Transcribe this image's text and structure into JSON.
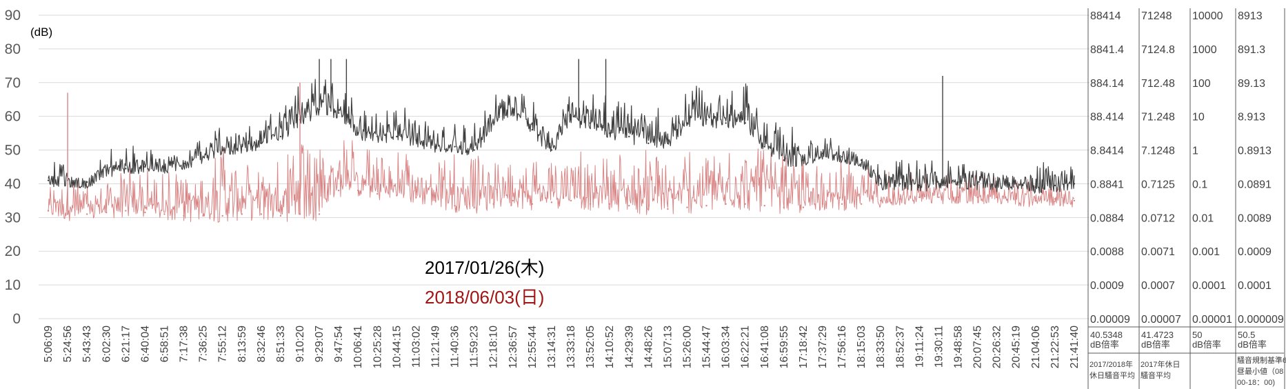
{
  "chart_data": {
    "type": "line",
    "unit_label": "(dB)",
    "ylim": [
      0,
      90
    ],
    "y_ticks": [
      "0",
      "10",
      "20",
      "30",
      "40",
      "50",
      "60",
      "70",
      "80",
      "90"
    ],
    "x_ticks": [
      "5:06:09",
      "5:24:56",
      "5:43:43",
      "6:02:30",
      "6:21:17",
      "6:40:04",
      "6:58:51",
      "7:17:38",
      "7:36:25",
      "7:55:12",
      "8:13:59",
      "8:32:46",
      "8:51:33",
      "9:10:20",
      "9:29:07",
      "9:47:54",
      "10:06:41",
      "10:25:28",
      "10:44:15",
      "11:03:02",
      "11:21:49",
      "11:40:36",
      "11:59:23",
      "12:18:10",
      "12:36:57",
      "12:55:44",
      "13:14:31",
      "13:33:18",
      "13:52:05",
      "14:10:52",
      "14:29:39",
      "14:48:26",
      "15:07:13",
      "15:26:00",
      "15:44:47",
      "16:03:34",
      "16:22:21",
      "16:41:08",
      "16:59:55",
      "17:18:42",
      "17:37:29",
      "17:56:16",
      "18:15:03",
      "18:33:50",
      "18:52:37",
      "19:11:24",
      "19:30:11",
      "19:48:58",
      "20:07:45",
      "20:26:32",
      "20:45:19",
      "21:04:06",
      "21:22:53",
      "21:41:40"
    ],
    "grid": true,
    "series": [
      {
        "name": "2017/01/26(木)",
        "color": "#404040",
        "values": [
          41,
          41,
          40.5,
          44,
          44.5,
          45,
          45,
          46,
          48,
          50,
          51,
          52,
          54,
          59,
          62,
          61,
          55,
          54,
          54,
          53,
          51,
          51,
          50,
          58,
          62,
          56,
          50,
          59,
          58,
          55,
          54,
          52,
          52,
          58,
          59,
          58,
          58,
          51,
          47,
          47,
          49,
          48,
          47,
          40,
          40,
          39.5,
          40,
          40.5,
          40,
          39.5,
          40,
          39,
          39.5,
          40
        ],
        "upper": [
          43,
          42,
          41.5,
          46,
          48,
          47,
          48,
          49,
          52,
          54,
          55,
          57,
          59,
          66,
          68,
          66,
          60,
          59,
          59,
          58,
          55,
          55,
          54,
          64,
          67,
          61,
          54,
          65,
          65,
          62,
          60,
          59,
          58,
          64,
          66,
          65,
          66,
          56,
          53,
          53,
          51,
          50,
          49,
          43,
          43,
          43,
          44,
          44,
          44,
          43,
          43,
          42.5,
          43,
          43
        ]
      },
      {
        "name": "2018/06/03(日)",
        "color": "#d98585",
        "values": [
          32,
          31,
          31,
          31.5,
          32,
          31.5,
          31,
          30.5,
          30.5,
          30.5,
          31,
          31,
          30.5,
          31,
          31,
          38,
          38,
          37,
          36.5,
          36,
          35,
          33.5,
          33,
          34,
          35,
          34,
          34.5,
          35,
          34,
          34,
          33.5,
          32.5,
          32.5,
          33,
          33.5,
          34,
          34,
          33.5,
          33,
          33,
          34,
          34,
          34,
          35,
          35.5,
          36,
          36,
          36,
          36,
          36,
          35.5,
          35,
          35.5,
          35
        ],
        "upper": [
          40,
          39,
          38,
          40,
          42,
          41,
          40,
          40,
          43,
          48,
          44,
          45,
          46,
          48,
          47,
          50,
          49,
          45,
          46,
          44,
          44,
          45,
          44,
          46,
          47,
          45,
          46,
          47,
          46,
          44,
          46,
          46,
          45,
          46,
          45,
          46,
          49,
          48,
          45,
          44,
          43,
          44,
          43,
          40,
          40,
          40,
          40,
          40,
          40,
          40,
          39,
          38,
          40,
          38
        ]
      }
    ],
    "spikes": [
      {
        "series": 0,
        "x": 14.0,
        "y": 77
      },
      {
        "series": 0,
        "x": 14.6,
        "y": 77
      },
      {
        "series": 0,
        "x": 15.4,
        "y": 77
      },
      {
        "series": 0,
        "x": 27.4,
        "y": 77
      },
      {
        "series": 0,
        "x": 28.8,
        "y": 77
      },
      {
        "series": 0,
        "x": 46.2,
        "y": 72
      },
      {
        "series": 1,
        "x": 1.0,
        "y": 67
      },
      {
        "series": 1,
        "x": 13.0,
        "y": 70
      }
    ],
    "right_columns": [
      {
        "ticks": [
          "0.00009",
          "0.0009",
          "0.0088",
          "0.0884",
          "0.8841",
          "8.8414",
          "88.414",
          "884.14",
          "8841.4",
          "88414"
        ],
        "value": "40.5348",
        "value_label": "dB倍率",
        "caption": [
          "2017/2018年",
          "休日騒音平均"
        ]
      },
      {
        "ticks": [
          "0.00007",
          "0.0007",
          "0.0071",
          "0.0712",
          "0.7125",
          "7.1248",
          "71.248",
          "712.48",
          "7124.8",
          "71248"
        ],
        "value": "41.4723",
        "value_label": "dB倍率",
        "caption": [
          "2017年休日",
          "騒音平均"
        ]
      },
      {
        "ticks": [
          "0.00001",
          "0.0001",
          "0.001",
          "0.01",
          "0.1",
          "1",
          "10",
          "100",
          "1000",
          "10000"
        ],
        "value": "50",
        "value_label": "dB倍率",
        "caption": []
      },
      {
        "ticks": [
          "0.000009",
          "0.0001",
          "0.0009",
          "0.0089",
          "0.0891",
          "0.8913",
          "8.913",
          "89.13",
          "891.3",
          "8913"
        ],
        "value": "50.5",
        "value_label": "dB倍率",
        "caption": [
          "騒音規制基準6",
          "昼最小値（08",
          "00-18：00)"
        ]
      }
    ]
  }
}
